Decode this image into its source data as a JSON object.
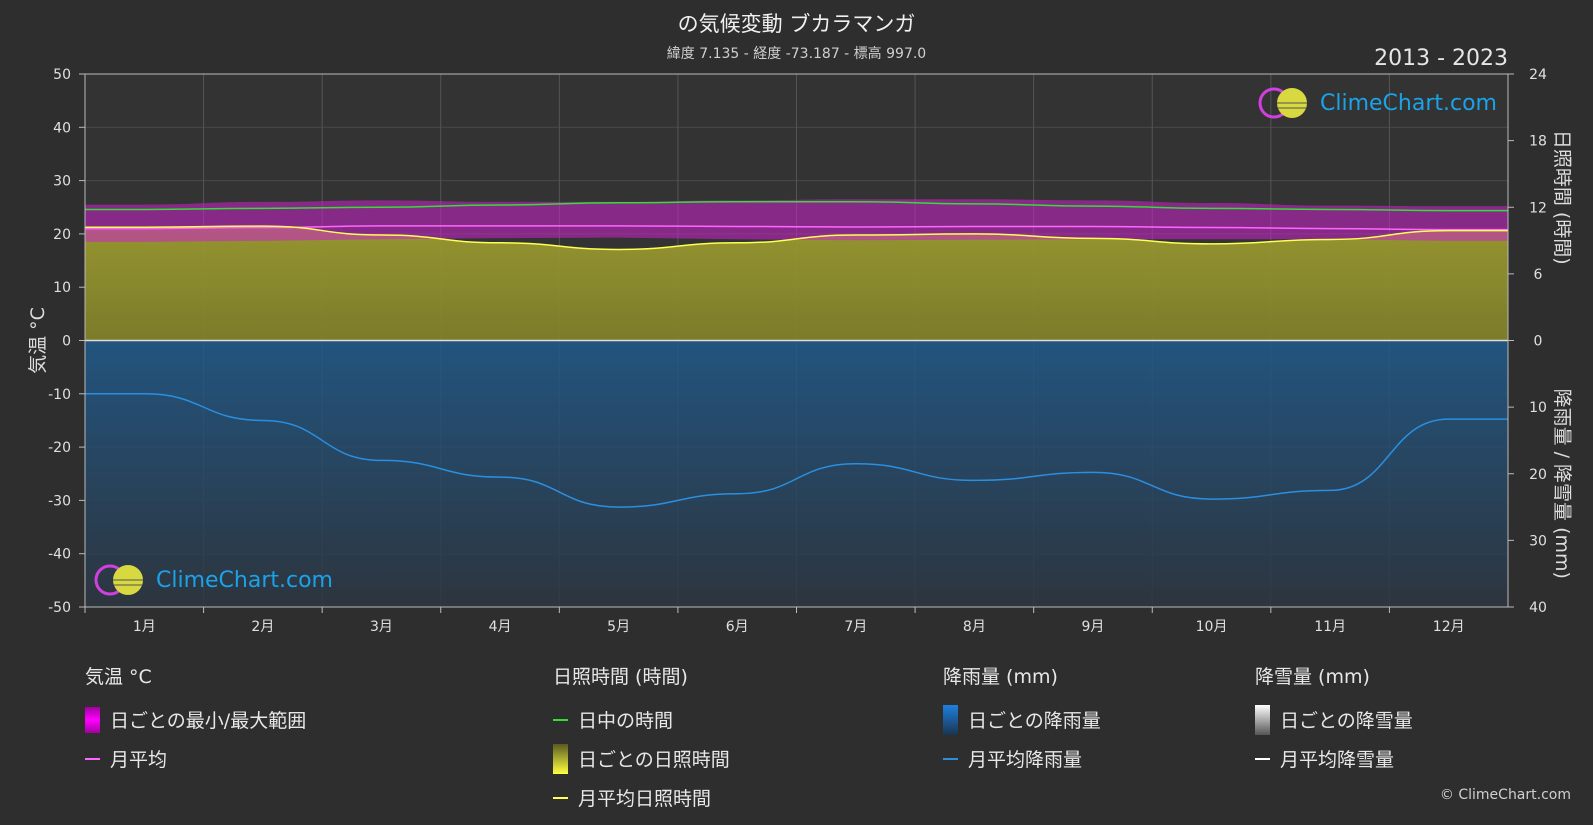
{
  "title": "の気候変動 ブカラマンガ",
  "subtitle": "緯度 7.135 - 経度 -73.187 - 標高 997.0",
  "years": "2013 - 2023",
  "copyright": "© ClimeChart.com",
  "watermark": "ClimeChart.com",
  "colors": {
    "background": "#2e2e2e",
    "daylight": "#33dd33",
    "temp_avg": "#ff66ff",
    "temp_range": "#cc22cc",
    "sunshine_fill": "#8f8f2a",
    "sunshine_line": "#ffff55",
    "rain_fill": "#1f5a8c",
    "rain_line": "#2a8fe0",
    "snow_line": "#ffffff"
  },
  "chart_data": {
    "type": "line",
    "categories": [
      "1月",
      "2月",
      "3月",
      "4月",
      "5月",
      "6月",
      "7月",
      "8月",
      "9月",
      "10月",
      "11月",
      "12月"
    ],
    "axes": {
      "left": {
        "label": "気温 °C",
        "ylim": [
          -50,
          50
        ],
        "ticks": [
          50,
          40,
          30,
          20,
          10,
          0,
          -10,
          -20,
          -30,
          -40,
          -50
        ]
      },
      "right_top": {
        "label": "日照時間 (時間)",
        "ylim": [
          0,
          24
        ],
        "ticks": [
          24,
          18,
          12,
          6,
          0
        ]
      },
      "right_bottom": {
        "label": "降雨量 / 降雪量 (mm)",
        "ylim": [
          0,
          40
        ],
        "ticks": [
          10,
          20,
          30,
          40
        ]
      }
    },
    "grid": true,
    "series": [
      {
        "name": "日中の時間",
        "unit": "時間",
        "values": [
          11.8,
          11.9,
          12.0,
          12.2,
          12.4,
          12.5,
          12.5,
          12.3,
          12.1,
          11.9,
          11.8,
          11.7
        ]
      },
      {
        "name": "月平均日照時間",
        "unit": "時間",
        "values": [
          10.2,
          10.3,
          9.5,
          8.8,
          8.2,
          8.8,
          9.5,
          9.6,
          9.2,
          8.7,
          9.1,
          9.9
        ]
      },
      {
        "name": "日ごとの最小/最大範囲",
        "unit": "°C",
        "min": [
          18.5,
          18.7,
          19.0,
          19.2,
          19.3,
          19.0,
          18.8,
          18.9,
          19.0,
          19.0,
          19.0,
          18.7
        ],
        "max": [
          25.5,
          26.0,
          26.3,
          26.0,
          26.0,
          26.3,
          26.5,
          26.5,
          26.3,
          25.8,
          25.3,
          25.2
        ]
      },
      {
        "name": "月平均",
        "unit": "°C",
        "values": [
          21.0,
          21.2,
          21.5,
          21.5,
          21.5,
          21.4,
          21.3,
          21.4,
          21.4,
          21.2,
          21.0,
          20.8
        ]
      },
      {
        "name": "月平均降雨量",
        "unit": "mm",
        "values": [
          8.0,
          12.0,
          18.0,
          20.5,
          25.0,
          23.0,
          18.5,
          21.0,
          19.8,
          23.8,
          22.5,
          11.8
        ]
      },
      {
        "name": "月平均降雪量",
        "unit": "mm",
        "values": [
          0,
          0,
          0,
          0,
          0,
          0,
          0,
          0,
          0,
          0,
          0,
          0
        ]
      }
    ]
  },
  "legend": {
    "groups": [
      {
        "header": "気温 °C",
        "items": [
          {
            "label": "日ごとの最小/最大範囲",
            "swatch": "range"
          },
          {
            "label": "月平均",
            "swatch": "line-temp"
          }
        ]
      },
      {
        "header": "日照時間 (時間)",
        "items": [
          {
            "label": "日中の時間",
            "swatch": "line-daylight"
          },
          {
            "label": "日ごとの日照時間",
            "swatch": "sun"
          },
          {
            "label": "月平均日照時間",
            "swatch": "line-sun"
          }
        ]
      },
      {
        "header": "降雨量 (mm)",
        "items": [
          {
            "label": "日ごとの降雨量",
            "swatch": "rain"
          },
          {
            "label": "月平均降雨量",
            "swatch": "line-rain"
          }
        ]
      },
      {
        "header": "降雪量 (mm)",
        "items": [
          {
            "label": "日ごとの降雪量",
            "swatch": "snow"
          },
          {
            "label": "月平均降雪量",
            "swatch": "line-snow"
          }
        ]
      }
    ]
  }
}
